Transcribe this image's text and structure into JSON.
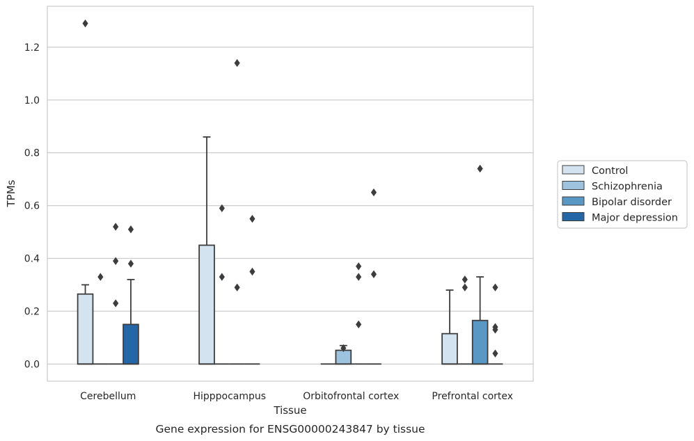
{
  "chart_data": {
    "type": "box",
    "caption": "Gene expression for ENSG00000243847 by tissue",
    "xlabel": "Tissue",
    "ylabel": "TPMs",
    "ylim": [
      -0.065,
      1.355
    ],
    "yticks": [
      0.0,
      0.2,
      0.4,
      0.6,
      0.8,
      1.0,
      1.2
    ],
    "ytick_labels": [
      "0.0",
      "0.2",
      "0.4",
      "0.6",
      "0.8",
      "1.0",
      "1.2"
    ],
    "grid": "horizontal",
    "legend_position": "right",
    "categories": [
      "Cerebellum",
      "Hipppocampus",
      "Orbitofrontal cortex",
      "Prefrontal cortex"
    ],
    "series": [
      {
        "name": "Control",
        "color": "#d4e3f0",
        "boxes": [
          {
            "q1": 0.0,
            "median": 0.0,
            "q3": 0.265,
            "whisker_low": 0.0,
            "whisker_high": 0.3,
            "outliers": [
              1.29
            ]
          },
          {
            "q1": 0.0,
            "median": 0.0,
            "q3": 0.45,
            "whisker_low": 0.0,
            "whisker_high": 0.86,
            "outliers": []
          },
          {
            "q1": 0.0,
            "median": 0.0,
            "q3": 0.0,
            "whisker_low": 0.0,
            "whisker_high": 0.0,
            "outliers": []
          },
          {
            "q1": 0.0,
            "median": 0.0,
            "q3": 0.115,
            "whisker_low": 0.0,
            "whisker_high": 0.28,
            "outliers": []
          }
        ]
      },
      {
        "name": "Schizophrenia",
        "color": "#9dc3de",
        "boxes": [
          {
            "q1": 0.0,
            "median": 0.0,
            "q3": 0.0,
            "whisker_low": 0.0,
            "whisker_high": 0.0,
            "outliers": [
              0.33
            ]
          },
          {
            "q1": 0.0,
            "median": 0.0,
            "q3": 0.0,
            "whisker_low": 0.0,
            "whisker_high": 0.0,
            "outliers": [
              0.59,
              0.33
            ]
          },
          {
            "q1": 0.0,
            "median": 0.0,
            "q3": 0.052,
            "whisker_low": 0.0,
            "whisker_high": 0.07,
            "outliers": [
              0.06
            ]
          },
          {
            "q1": 0.0,
            "median": 0.0,
            "q3": 0.0,
            "whisker_low": 0.0,
            "whisker_high": 0.0,
            "outliers": [
              0.32,
              0.29
            ]
          }
        ]
      },
      {
        "name": "Bipolar disorder",
        "color": "#5998c5",
        "boxes": [
          {
            "q1": 0.0,
            "median": 0.0,
            "q3": 0.0,
            "whisker_low": 0.0,
            "whisker_high": 0.0,
            "outliers": [
              0.52,
              0.39,
              0.23
            ]
          },
          {
            "q1": 0.0,
            "median": 0.0,
            "q3": 0.0,
            "whisker_low": 0.0,
            "whisker_high": 0.0,
            "outliers": [
              1.14,
              0.29
            ]
          },
          {
            "q1": 0.0,
            "median": 0.0,
            "q3": 0.0,
            "whisker_low": 0.0,
            "whisker_high": 0.0,
            "outliers": [
              0.37,
              0.33,
              0.15
            ]
          },
          {
            "q1": 0.0,
            "median": 0.0,
            "q3": 0.165,
            "whisker_low": 0.0,
            "whisker_high": 0.33,
            "outliers": [
              0.74
            ]
          }
        ]
      },
      {
        "name": "Major depression",
        "color": "#2466a6",
        "boxes": [
          {
            "q1": 0.0,
            "median": 0.0,
            "q3": 0.15,
            "whisker_low": 0.0,
            "whisker_high": 0.32,
            "outliers": [
              0.51,
              0.38
            ]
          },
          {
            "q1": 0.0,
            "median": 0.0,
            "q3": 0.0,
            "whisker_low": 0.0,
            "whisker_high": 0.0,
            "outliers": [
              0.55,
              0.35
            ]
          },
          {
            "q1": 0.0,
            "median": 0.0,
            "q3": 0.0,
            "whisker_low": 0.0,
            "whisker_high": 0.0,
            "outliers": [
              0.65,
              0.34
            ]
          },
          {
            "q1": 0.0,
            "median": 0.0,
            "q3": 0.0,
            "whisker_low": 0.0,
            "whisker_high": 0.0,
            "outliers": [
              0.14,
              0.13,
              0.04,
              0.29
            ]
          }
        ]
      }
    ]
  }
}
